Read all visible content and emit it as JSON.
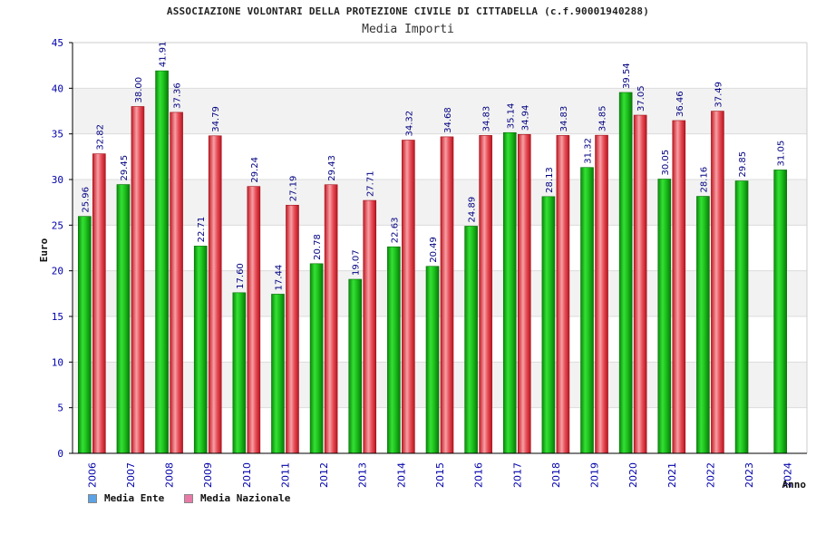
{
  "chart_data": {
    "type": "bar",
    "title": "ASSOCIAZIONE VOLONTARI DELLA PROTEZIONE CIVILE DI CITTADELLA (c.f.90001940288)",
    "subtitle": "Media Importi",
    "xlabel": "Anno",
    "ylabel": "Euro",
    "ylim": [
      0,
      45
    ],
    "yticks": [
      0,
      5,
      10,
      15,
      20,
      25,
      30,
      35,
      40,
      45
    ],
    "categories": [
      "2006",
      "2007",
      "2008",
      "2009",
      "2010",
      "2011",
      "2012",
      "2013",
      "2014",
      "2015",
      "2016",
      "2017",
      "2018",
      "2019",
      "2020",
      "2021",
      "2022",
      "2023",
      "2024"
    ],
    "series": [
      {
        "name": "Media Ente",
        "legend_color": "#5ba3e6",
        "bar_color": "#1ec41e",
        "values": [
          25.96,
          29.45,
          41.91,
          22.71,
          17.6,
          17.44,
          20.78,
          19.07,
          22.63,
          20.49,
          24.89,
          35.14,
          28.13,
          31.32,
          39.54,
          30.05,
          28.16,
          29.85,
          31.05
        ],
        "labels": [
          "25.96",
          "29.45",
          "41.91",
          "22.71",
          "17.60",
          "17.44",
          "20.78",
          "19.07",
          "22.63",
          "20.49",
          "24.89",
          "35.14",
          "28.13",
          "31.32",
          "39.54",
          "30.05",
          "28.16",
          "29.85",
          "31.05"
        ]
      },
      {
        "name": "Media Nazionale",
        "legend_color": "#e87aa8",
        "bar_color": "#e8303a",
        "values": [
          32.82,
          38.0,
          37.36,
          34.79,
          29.24,
          27.19,
          29.43,
          27.71,
          34.32,
          34.68,
          34.83,
          34.94,
          34.83,
          34.85,
          37.05,
          36.46,
          37.49,
          null,
          null
        ],
        "labels": [
          "32.82",
          "38.00",
          "37.36",
          "34.79",
          "29.24",
          "27.19",
          "29.43",
          "27.71",
          "34.32",
          "34.68",
          "34.83",
          "34.94",
          "34.83",
          "34.85",
          "37.05",
          "36.46",
          "37.49",
          "",
          ""
        ]
      }
    ],
    "grid": true,
    "legend_position": "bottom-left",
    "axis_color": "#0000aa",
    "label_color": "#000080"
  }
}
